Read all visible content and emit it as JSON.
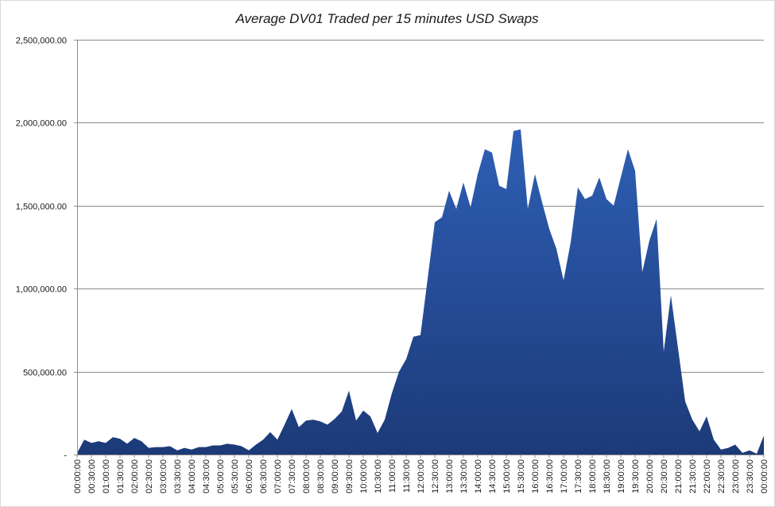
{
  "chart_data": {
    "type": "area",
    "title": "Average DV01 Traded per 15 minutes USD Swaps",
    "xlabel": "",
    "ylabel": "",
    "ylim": [
      0,
      2500000
    ],
    "y_ticks": [
      0,
      500000,
      1000000,
      1500000,
      2000000,
      2500000
    ],
    "y_tick_labels": [
      "-",
      "500,000.00",
      "1,000,000.00",
      "1,500,000.00",
      "2,000,000.00",
      "2,500,000.00"
    ],
    "grid": true,
    "legend": "none",
    "x_tick_labels": [
      "00:00:00",
      "00:30:00",
      "01:00:00",
      "01:30:00",
      "02:00:00",
      "02:30:00",
      "03:00:00",
      "03:30:00",
      "04:00:00",
      "04:30:00",
      "05:00:00",
      "05:30:00",
      "06:00:00",
      "06:30:00",
      "07:00:00",
      "07:30:00",
      "08:00:00",
      "08:30:00",
      "09:00:00",
      "09:30:00",
      "10:00:00",
      "10:30:00",
      "11:00:00",
      "11:30:00",
      "12:00:00",
      "12:30:00",
      "13:00:00",
      "13:30:00",
      "14:00:00",
      "14:30:00",
      "15:00:00",
      "15:30:00",
      "16:00:00",
      "16:30:00",
      "17:00:00",
      "17:30:00",
      "18:00:00",
      "18:30:00",
      "19:00:00",
      "19:30:00",
      "20:00:00",
      "20:30:00",
      "21:00:00",
      "21:30:00",
      "22:00:00",
      "22:30:00",
      "23:00:00",
      "23:30:00",
      "00:00:00"
    ],
    "series": [
      {
        "color": "#2e5fb5",
        "color_dark": "#1c3a78",
        "values": [
          10000,
          90000,
          70000,
          80000,
          70000,
          105000,
          95000,
          65000,
          100000,
          80000,
          40000,
          45000,
          45000,
          50000,
          25000,
          40000,
          30000,
          45000,
          45000,
          55000,
          55000,
          65000,
          60000,
          50000,
          25000,
          60000,
          90000,
          135000,
          90000,
          180000,
          275000,
          165000,
          205000,
          210000,
          200000,
          180000,
          215000,
          260000,
          385000,
          205000,
          265000,
          230000,
          130000,
          210000,
          370000,
          500000,
          575000,
          710000,
          720000,
          1060000,
          1400000,
          1430000,
          1590000,
          1480000,
          1640000,
          1490000,
          1690000,
          1840000,
          1820000,
          1620000,
          1600000,
          1950000,
          1960000,
          1480000,
          1690000,
          1520000,
          1360000,
          1240000,
          1050000,
          1280000,
          1610000,
          1540000,
          1560000,
          1670000,
          1540000,
          1500000,
          1670000,
          1840000,
          1710000,
          1100000,
          1290000,
          1420000,
          620000,
          960000,
          640000,
          320000,
          210000,
          140000,
          230000,
          90000,
          30000,
          40000,
          60000,
          10000,
          25000,
          5000,
          115000
        ]
      }
    ]
  }
}
